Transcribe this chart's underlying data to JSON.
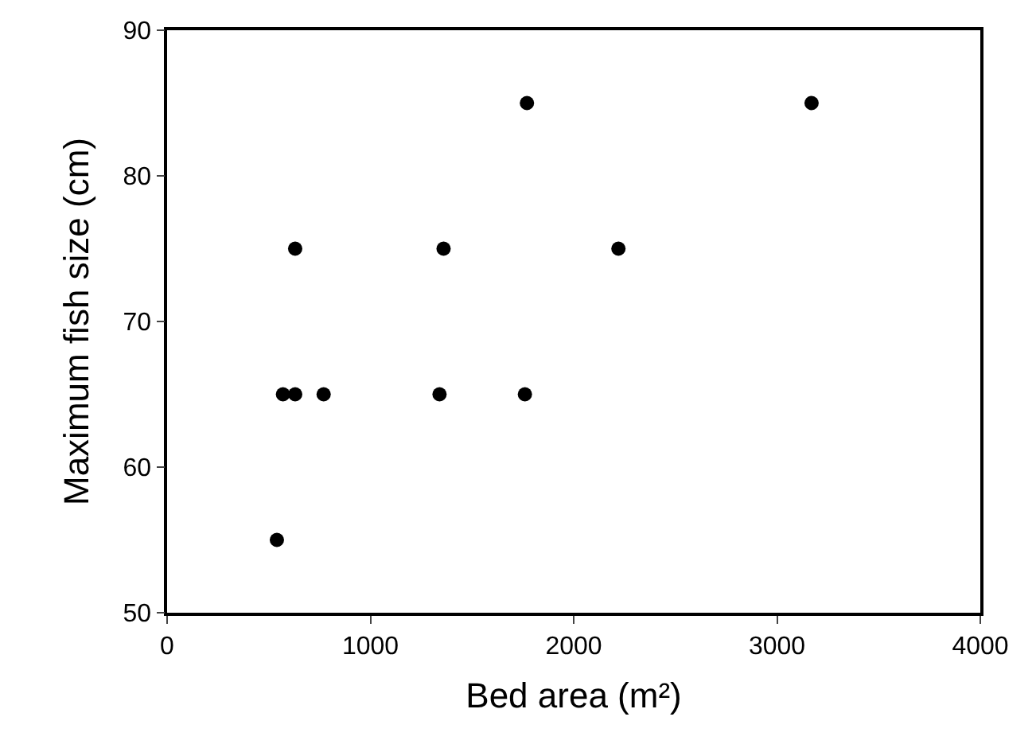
{
  "chart_data": {
    "type": "scatter",
    "xlabel": "Bed area (m²)",
    "ylabel": "Maximum fish size (cm)",
    "x": [
      540,
      570,
      630,
      770,
      630,
      1340,
      1360,
      1760,
      1770,
      2220,
      3170
    ],
    "values": [
      55,
      65,
      65,
      65,
      75,
      65,
      75,
      65,
      85,
      75,
      85
    ],
    "color": "#000000",
    "marker": "circle",
    "xlim": [
      0,
      4000
    ],
    "xticks": [
      0,
      1000,
      2000,
      3000,
      4000
    ],
    "ylim": [
      50,
      90
    ],
    "yticks": [
      50,
      60,
      70,
      80,
      90
    ],
    "legend": false
  }
}
